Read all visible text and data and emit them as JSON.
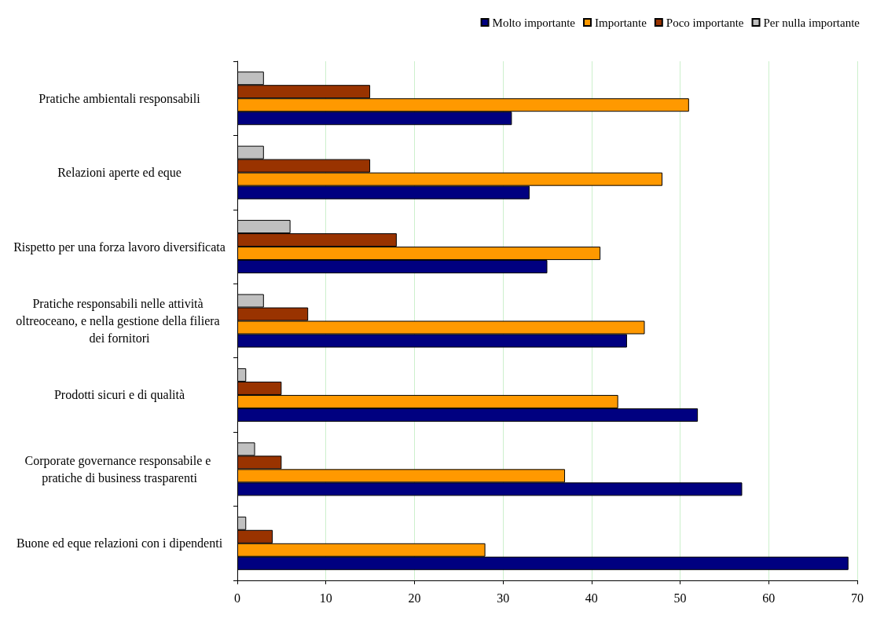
{
  "chart_data": {
    "type": "bar",
    "orientation": "horizontal",
    "categories": [
      "Pratiche ambientali responsabili",
      "Relazioni aperte ed eque",
      "Rispetto per una forza lavoro diversificata",
      "Pratiche responsabili nelle attività oltreoceano, e nella gestione della filiera dei fornitori",
      "Prodotti sicuri e di qualità",
      "Corporate governance responsabile e pratiche di business trasparenti",
      "Buone ed eque relazioni con i dipendenti"
    ],
    "series": [
      {
        "name": "Molto importante",
        "color": "#000080",
        "values": [
          31,
          33,
          35,
          44,
          52,
          57,
          69
        ]
      },
      {
        "name": "Importante",
        "color": "#ff9900",
        "values": [
          51,
          48,
          41,
          46,
          43,
          37,
          28
        ]
      },
      {
        "name": "Poco importante",
        "color": "#993300",
        "values": [
          15,
          15,
          18,
          8,
          5,
          5,
          4
        ]
      },
      {
        "name": "Per nulla importante",
        "color": "#c0c0c0",
        "values": [
          3,
          3,
          6,
          3,
          1,
          2,
          1
        ]
      }
    ],
    "xlim": [
      0,
      70
    ],
    "xticks": [
      0,
      10,
      20,
      30,
      40,
      50,
      60,
      70
    ],
    "grid": "x",
    "legend": "top right"
  }
}
